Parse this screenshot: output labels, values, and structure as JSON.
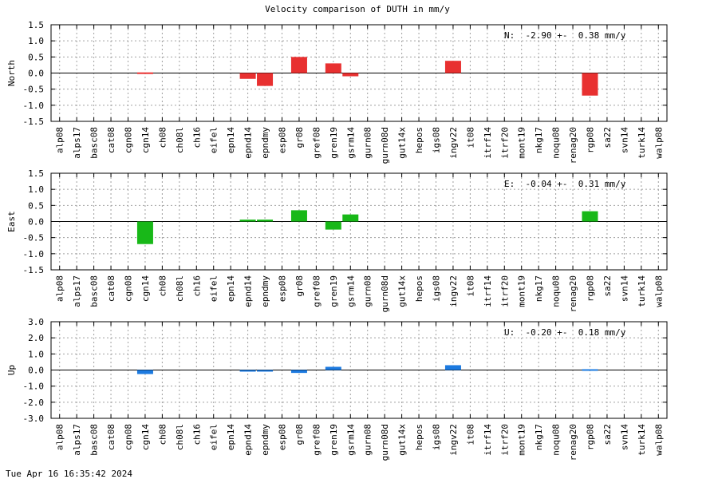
{
  "title": "Velocity comparison of DUTH in mm/y",
  "footer": "Tue Apr 16 16:35:42 2024",
  "chart_data": {
    "type": "bar",
    "categories": [
      "alp08",
      "alps17",
      "basc08",
      "cat08",
      "cgn08",
      "cgn14",
      "ch08",
      "ch08l",
      "ch16",
      "eifel",
      "epn14",
      "epnd14",
      "epndmy",
      "esp08",
      "gr08",
      "gref08",
      "gren19",
      "gsrm14",
      "gurn08",
      "gurn08d",
      "gut14x",
      "hepos",
      "igs08",
      "ingv22",
      "it08",
      "itrf14",
      "itrf20",
      "mont19",
      "nkg17",
      "noqu08",
      "renag20",
      "rgp08",
      "sa22",
      "svn14",
      "turk14",
      "walp08"
    ],
    "grid": true,
    "panels": [
      {
        "ylabel": "North",
        "ylim": [
          -1.5,
          1.5
        ],
        "yticks": [
          "1.5",
          "1.0",
          "0.5",
          "0.0",
          "-0.5",
          "-1.0",
          "-1.5"
        ],
        "stat": "N:  -2.90 +-  0.38 mm/y",
        "color": "#e83030",
        "values": [
          0,
          0,
          0,
          0,
          0,
          0.02,
          0,
          0,
          0,
          0,
          0,
          -0.18,
          -0.4,
          0,
          0.5,
          0,
          0.3,
          -0.1,
          0,
          0,
          0,
          0,
          0,
          0.38,
          0,
          0,
          0,
          0,
          0,
          0,
          0,
          -0.7,
          0,
          0,
          0,
          0
        ]
      },
      {
        "ylabel": "East",
        "ylim": [
          -1.5,
          1.5
        ],
        "yticks": [
          "1.5",
          "1.0",
          "0.5",
          "0.0",
          "-0.5",
          "-1.0",
          "-1.5"
        ],
        "stat": "E:  -0.04 +-  0.31 mm/y",
        "color": "#18b818",
        "values": [
          0,
          0,
          0,
          0,
          0,
          -0.7,
          0,
          0,
          0,
          0,
          0,
          0.06,
          0.06,
          0,
          0.35,
          0,
          -0.25,
          0.22,
          0,
          0,
          0,
          0,
          0,
          0,
          0,
          0,
          0,
          0,
          0,
          0,
          0,
          0.32,
          0,
          0,
          0,
          0
        ]
      },
      {
        "ylabel": "Up",
        "ylim": [
          -3.0,
          3.0
        ],
        "yticks": [
          "3.0",
          "2.0",
          "1.0",
          "0.0",
          "-1.0",
          "-2.0",
          "-3.0"
        ],
        "stat": "U:  -0.20 +-  0.18 mm/y",
        "color": "#1c7ae0",
        "values": [
          0,
          0,
          0,
          0,
          0,
          -0.25,
          0,
          0,
          0,
          0,
          0,
          -0.1,
          -0.05,
          0,
          -0.18,
          0,
          0.2,
          0,
          0,
          0,
          0,
          0,
          0,
          0.3,
          0,
          0,
          0,
          0,
          0,
          0,
          0,
          0.05,
          0,
          0,
          0,
          0
        ]
      }
    ]
  }
}
